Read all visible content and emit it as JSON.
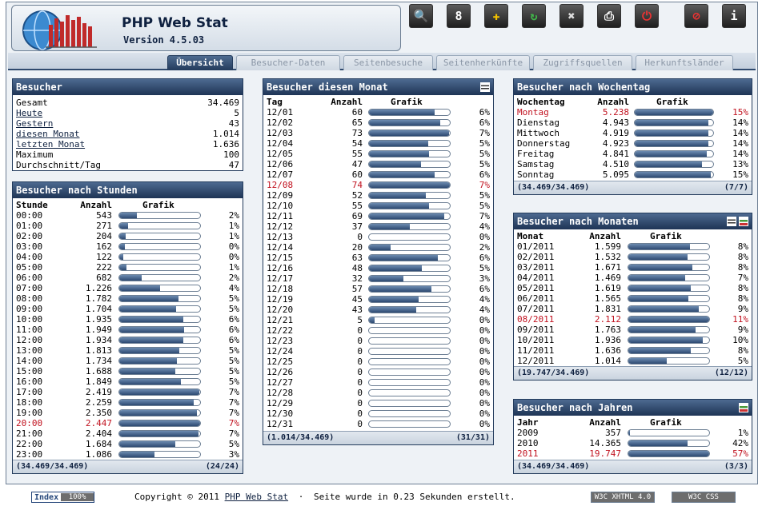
{
  "app": {
    "title": "PHP Web Stat",
    "version": "Version 4.5.03"
  },
  "toolbar": [
    {
      "name": "search-icon",
      "glyph": "🔍"
    },
    {
      "name": "calendar-icon",
      "glyph": "8"
    },
    {
      "name": "puzzle-icon",
      "glyph": "✚"
    },
    {
      "name": "refresh-icon",
      "glyph": "↻"
    },
    {
      "name": "tools-icon",
      "glyph": "✖"
    },
    {
      "name": "print-icon",
      "glyph": "⎙"
    },
    {
      "name": "power-icon",
      "glyph": "⏻"
    },
    {
      "name": "block-icon",
      "glyph": "⊘"
    },
    {
      "name": "info-icon",
      "glyph": "i"
    }
  ],
  "tabs": [
    "Übersicht",
    "Besucher-Daten",
    "Seitenbesuche",
    "Seitenherkünfte",
    "Zugriffsquellen",
    "Herkunftsländer"
  ],
  "besucher": {
    "title": "Besucher",
    "rows": [
      [
        "Gesamt",
        "34.469",
        false
      ],
      [
        "Heute",
        "5",
        true
      ],
      [
        "Gestern",
        "43",
        true
      ],
      [
        "diesen Monat",
        "1.014",
        true
      ],
      [
        "letzten Monat",
        "1.636",
        true
      ],
      [
        "Maximum",
        "100",
        false
      ],
      [
        "Durchschnitt/Tag",
        "47",
        false
      ]
    ]
  },
  "hdr": {
    "stunde": "Stunde",
    "tag": "Tag",
    "anzahl": "Anzahl",
    "grafik": "Grafik",
    "wochentag": "Wochentag",
    "monat": "Monat",
    "jahr": "Jahr"
  },
  "stunden": {
    "title": "Besucher nach Stunden",
    "footer_left": "(34.469/34.469)",
    "footer_right": "(24/24)",
    "max": 2447,
    "red": "20:00",
    "rows": [
      [
        "00:00",
        "543",
        "2%",
        543
      ],
      [
        "01:00",
        "271",
        "1%",
        271
      ],
      [
        "02:00",
        "204",
        "1%",
        204
      ],
      [
        "03:00",
        "162",
        "0%",
        162
      ],
      [
        "04:00",
        "122",
        "0%",
        122
      ],
      [
        "05:00",
        "222",
        "1%",
        222
      ],
      [
        "06:00",
        "682",
        "2%",
        682
      ],
      [
        "07:00",
        "1.226",
        "4%",
        1226
      ],
      [
        "08:00",
        "1.782",
        "5%",
        1782
      ],
      [
        "09:00",
        "1.704",
        "5%",
        1704
      ],
      [
        "10:00",
        "1.935",
        "6%",
        1935
      ],
      [
        "11:00",
        "1.949",
        "6%",
        1949
      ],
      [
        "12:00",
        "1.934",
        "6%",
        1934
      ],
      [
        "13:00",
        "1.813",
        "5%",
        1813
      ],
      [
        "14:00",
        "1.734",
        "5%",
        1734
      ],
      [
        "15:00",
        "1.688",
        "5%",
        1688
      ],
      [
        "16:00",
        "1.849",
        "5%",
        1849
      ],
      [
        "17:00",
        "2.419",
        "7%",
        2419
      ],
      [
        "18:00",
        "2.259",
        "7%",
        2259
      ],
      [
        "19:00",
        "2.350",
        "7%",
        2350
      ],
      [
        "20:00",
        "2.447",
        "7%",
        2447
      ],
      [
        "21:00",
        "2.404",
        "7%",
        2404
      ],
      [
        "22:00",
        "1.684",
        "5%",
        1684
      ],
      [
        "23:00",
        "1.086",
        "3%",
        1086
      ]
    ]
  },
  "monat": {
    "title": "Besucher diesen Monat",
    "footer_left": "(1.014/34.469)",
    "footer_right": "(31/31)",
    "max": 74,
    "red": "12/08",
    "rows": [
      [
        "12/01",
        "60",
        "6%",
        60
      ],
      [
        "12/02",
        "65",
        "6%",
        65
      ],
      [
        "12/03",
        "73",
        "7%",
        73
      ],
      [
        "12/04",
        "54",
        "5%",
        54
      ],
      [
        "12/05",
        "55",
        "5%",
        55
      ],
      [
        "12/06",
        "47",
        "5%",
        47
      ],
      [
        "12/07",
        "60",
        "6%",
        60
      ],
      [
        "12/08",
        "74",
        "7%",
        74
      ],
      [
        "12/09",
        "52",
        "5%",
        52
      ],
      [
        "12/10",
        "55",
        "5%",
        55
      ],
      [
        "12/11",
        "69",
        "7%",
        69
      ],
      [
        "12/12",
        "37",
        "4%",
        37
      ],
      [
        "12/13",
        "0",
        "0%",
        0
      ],
      [
        "12/14",
        "20",
        "2%",
        20
      ],
      [
        "12/15",
        "63",
        "6%",
        63
      ],
      [
        "12/16",
        "48",
        "5%",
        48
      ],
      [
        "12/17",
        "32",
        "3%",
        32
      ],
      [
        "12/18",
        "57",
        "6%",
        57
      ],
      [
        "12/19",
        "45",
        "4%",
        45
      ],
      [
        "12/20",
        "43",
        "4%",
        43
      ],
      [
        "12/21",
        "5",
        "0%",
        5
      ],
      [
        "12/22",
        "0",
        "0%",
        0
      ],
      [
        "12/23",
        "0",
        "0%",
        0
      ],
      [
        "12/24",
        "0",
        "0%",
        0
      ],
      [
        "12/25",
        "0",
        "0%",
        0
      ],
      [
        "12/26",
        "0",
        "0%",
        0
      ],
      [
        "12/27",
        "0",
        "0%",
        0
      ],
      [
        "12/28",
        "0",
        "0%",
        0
      ],
      [
        "12/29",
        "0",
        "0%",
        0
      ],
      [
        "12/30",
        "0",
        "0%",
        0
      ],
      [
        "12/31",
        "0",
        "0%",
        0
      ]
    ]
  },
  "wochentag": {
    "title": "Besucher nach Wochentag",
    "footer_left": "(34.469/34.469)",
    "footer_right": "(7/7)",
    "max": 5238,
    "red": "Montag",
    "rows": [
      [
        "Montag",
        "5.238",
        "15%",
        5238
      ],
      [
        "Dienstag",
        "4.943",
        "14%",
        4943
      ],
      [
        "Mittwoch",
        "4.919",
        "14%",
        4919
      ],
      [
        "Donnerstag",
        "4.923",
        "14%",
        4923
      ],
      [
        "Freitag",
        "4.841",
        "14%",
        4841
      ],
      [
        "Samstag",
        "4.510",
        "13%",
        4510
      ],
      [
        "Sonntag",
        "5.095",
        "15%",
        5095
      ]
    ]
  },
  "monate": {
    "title": "Besucher nach Monaten",
    "footer_left": "(19.747/34.469)",
    "footer_right": "(12/12)",
    "max": 2112,
    "red": "08/2011",
    "rows": [
      [
        "01/2011",
        "1.599",
        "8%",
        1599
      ],
      [
        "02/2011",
        "1.532",
        "8%",
        1532
      ],
      [
        "03/2011",
        "1.671",
        "8%",
        1671
      ],
      [
        "04/2011",
        "1.469",
        "7%",
        1469
      ],
      [
        "05/2011",
        "1.619",
        "8%",
        1619
      ],
      [
        "06/2011",
        "1.565",
        "8%",
        1565
      ],
      [
        "07/2011",
        "1.831",
        "9%",
        1831
      ],
      [
        "08/2011",
        "2.112",
        "11%",
        2112
      ],
      [
        "09/2011",
        "1.763",
        "9%",
        1763
      ],
      [
        "10/2011",
        "1.936",
        "10%",
        1936
      ],
      [
        "11/2011",
        "1.636",
        "8%",
        1636
      ],
      [
        "12/2011",
        "1.014",
        "5%",
        1014
      ]
    ]
  },
  "jahre": {
    "title": "Besucher nach Jahren",
    "footer_left": "(34.469/34.469)",
    "footer_right": "(3/3)",
    "max": 19747,
    "red": "2011",
    "rows": [
      [
        "2009",
        "357",
        "1%",
        357
      ],
      [
        "2010",
        "14.365",
        "42%",
        14365
      ],
      [
        "2011",
        "19.747",
        "57%",
        19747
      ]
    ]
  },
  "footer": {
    "index_label": "Index",
    "index_value": "100%",
    "copyright": "Copyright © 2011",
    "link": "PHP Web Stat",
    "dot": "·",
    "timing": "Seite wurde in 0.23 Sekunden erstellt.",
    "xhtml": "W3C XHTML 4.0",
    "css": "W3C CSS"
  }
}
